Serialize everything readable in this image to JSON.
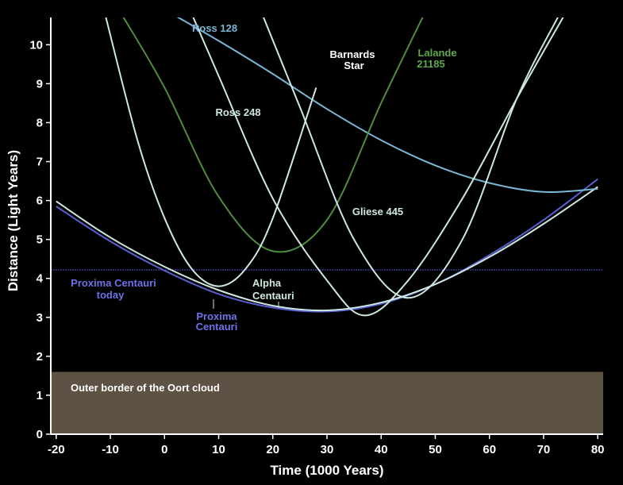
{
  "colors": {
    "background": "#000000",
    "axis": "#ffffff",
    "oort_band": "#5e5244",
    "reference_line": "#4b55d6",
    "proxima": "#5a5fd0",
    "alpha": "#cde8e0",
    "ross128": "#7ab6d6",
    "lalande": "#4f8d3e",
    "ross248": "#cde8e0",
    "barnard": "#cde8e0",
    "gliese": "#cde8e0",
    "label_white": "#ffffff",
    "label_green": "#5ea84a",
    "label_blue": "#6f72e6",
    "label_skyblue": "#7ab6d6",
    "label_pale": "#cde8e0"
  },
  "chart_data": {
    "type": "line",
    "xlabel": "Time (1000 Years)",
    "ylabel": "Distance (Light Years)",
    "xlim": [
      -21,
      81
    ],
    "ylim": [
      0,
      10.7
    ],
    "xticks": [
      "-20",
      "-10",
      "0",
      "10",
      "20",
      "30",
      "40",
      "50",
      "60",
      "70",
      "80"
    ],
    "yticks": [
      "0",
      "1",
      "2",
      "3",
      "4",
      "5",
      "6",
      "7",
      "8",
      "9",
      "10"
    ],
    "grid": false,
    "legend": "none",
    "bands": [
      {
        "label": "Outer border of the Oort cloud",
        "ymin": 0,
        "ymax": 1.6
      }
    ],
    "reference_lines": [
      {
        "label": "Proxima Centauri today",
        "y": 4.22
      }
    ],
    "series": [
      {
        "name": "Proxima Centauri",
        "x": [
          -20,
          -10,
          0,
          10,
          20,
          30,
          40,
          50,
          60,
          70,
          80
        ],
        "y": [
          5.85,
          4.95,
          4.2,
          3.6,
          3.25,
          3.15,
          3.35,
          3.85,
          4.6,
          5.5,
          6.55
        ]
      },
      {
        "name": "Alpha Centauri",
        "x": [
          -20,
          -10,
          0,
          10,
          20,
          30,
          40,
          50,
          60,
          70,
          80
        ],
        "y": [
          5.98,
          5.05,
          4.3,
          3.7,
          3.3,
          3.18,
          3.38,
          3.85,
          4.55,
          5.4,
          6.35
        ]
      },
      {
        "name": "Ross 128",
        "x": [
          0,
          10,
          20,
          30,
          40,
          50,
          60,
          70,
          80
        ],
        "y": [
          10.9,
          10.1,
          9.25,
          8.35,
          7.55,
          6.9,
          6.45,
          6.22,
          6.3
        ]
      },
      {
        "name": "Lalande 21185",
        "x": [
          -8,
          0,
          10,
          20,
          30,
          40,
          48
        ],
        "y": [
          10.8,
          8.9,
          6.1,
          4.7,
          5.5,
          8.5,
          10.8
        ]
      },
      {
        "name": "Ross 248",
        "x": [
          -11,
          -5,
          0,
          5,
          10,
          15,
          20,
          28
        ],
        "y": [
          10.8,
          7.55,
          5.55,
          4.25,
          3.8,
          4.25,
          5.55,
          8.9
        ]
      },
      {
        "name": "Barnards Star",
        "x": [
          5,
          10,
          20,
          30,
          37,
          45,
          55,
          65,
          74
        ],
        "y": [
          10.8,
          9.2,
          6.05,
          3.95,
          3.05,
          3.95,
          6.05,
          8.6,
          10.8
        ]
      },
      {
        "name": "Gliese 445",
        "x": [
          18,
          25,
          35,
          45,
          55,
          65,
          73
        ],
        "y": [
          10.8,
          8.4,
          5.0,
          3.5,
          5.0,
          8.6,
          10.8
        ]
      }
    ],
    "annotations": [
      {
        "text": "Ross 128"
      },
      {
        "text": "Barnards"
      },
      {
        "text": "Star"
      },
      {
        "text": "Lalande"
      },
      {
        "text": "21185"
      },
      {
        "text": "Ross 248"
      },
      {
        "text": "Gliese 445"
      },
      {
        "text": "Alpha"
      },
      {
        "text": "Centauri"
      },
      {
        "text": "Proxima Centauri"
      },
      {
        "text": "today"
      },
      {
        "text": "Proxima"
      },
      {
        "text": "Centauri"
      },
      {
        "text": "Outer border of the Oort cloud"
      }
    ]
  }
}
